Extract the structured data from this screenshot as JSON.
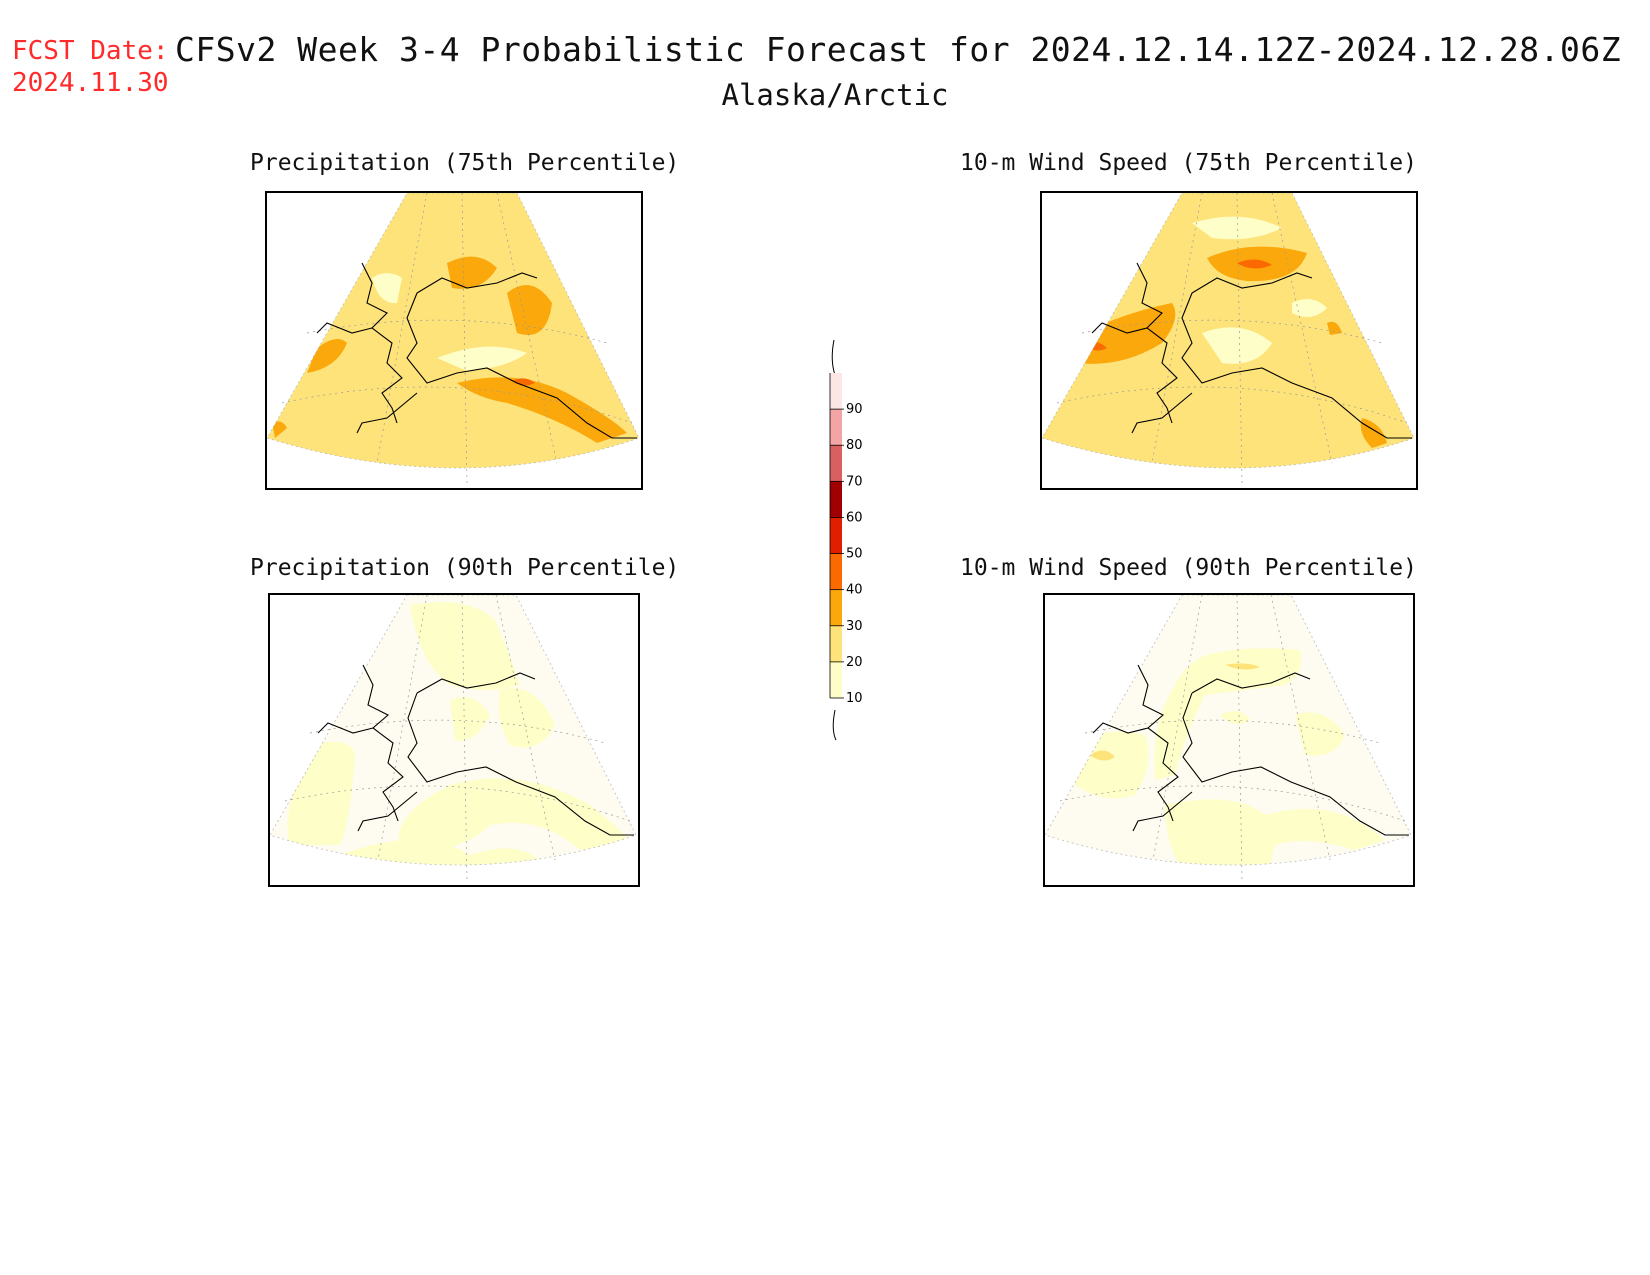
{
  "header": {
    "fcst_label": "FCST Date:",
    "fcst_date": "2024.11.30",
    "title": "CFSv2 Week 3-4 Probabilistic Forecast for 2024.12.14.12Z-2024.12.28.06Z",
    "subtitle": "Alaska/Arctic"
  },
  "panels": [
    {
      "title": "Precipitation (75th Percentile)",
      "base_color": "#fde37a"
    },
    {
      "title": "10-m Wind Speed (75th Percentile)",
      "base_color": "#fde37a"
    },
    {
      "title": "Precipitation (90th Percentile)",
      "base_color": "#fefcf0"
    },
    {
      "title": "10-m Wind Speed (90th Percentile)",
      "base_color": "#fefcf0"
    }
  ],
  "colorbar": {
    "levels": [
      "10",
      "20",
      "30",
      "40",
      "50",
      "60",
      "70",
      "80",
      "90"
    ],
    "colors": [
      "#fefec8",
      "#fde37a",
      "#fba80c",
      "#fb6a00",
      "#e01f00",
      "#a00000",
      "#d86060",
      "#f3a4a4",
      "#fde6e6"
    ],
    "bin_values": [
      10,
      20,
      30,
      40,
      50,
      60,
      70,
      80,
      90
    ]
  }
}
